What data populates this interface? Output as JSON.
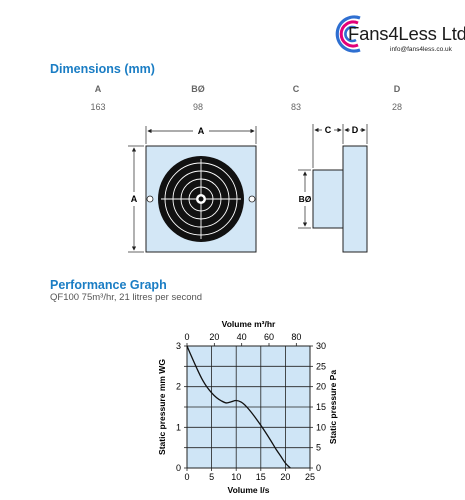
{
  "brand": {
    "name": "Fans4Less Ltd",
    "email": "info@fans4less.co.uk"
  },
  "dimensions": {
    "heading": "Dimensions (mm)",
    "columns": [
      {
        "label": "A",
        "value": "163"
      },
      {
        "label": "BØ",
        "value": "98"
      },
      {
        "label": "C",
        "value": "83"
      },
      {
        "label": "D",
        "value": "28"
      }
    ],
    "drawing_labels": {
      "front_width": "A",
      "front_height": "A",
      "side_c": "C",
      "side_d": "D",
      "side_diameter": "BØ"
    }
  },
  "performance": {
    "heading": "Performance Graph",
    "subtitle": "QF100 75m³/hr, 21 litres per second"
  },
  "colors": {
    "heading_blue": "#1a7dc4",
    "drawing_fill": "#d3e7f6",
    "chart_fill": "#cfe5f6",
    "logo_blue": "#2e6fd1",
    "logo_pink": "#e2007a"
  },
  "chart_data": {
    "type": "line",
    "title": "",
    "xlabel": "Volume l/s",
    "x2label": "Volume m³/hr",
    "ylabel": "Static pressure mm WG",
    "y2label": "Static pressure Pa",
    "xlim": [
      0,
      25
    ],
    "x2lim": [
      0,
      90
    ],
    "ylim": [
      0,
      3
    ],
    "y2lim": [
      0,
      30
    ],
    "xticks": [
      "0",
      "5",
      "10",
      "15",
      "20",
      "25"
    ],
    "x2ticks": [
      "0",
      "20",
      "40",
      "60",
      "80"
    ],
    "yticks": [
      "0",
      "0.5",
      "1",
      "1.5",
      "2",
      "2.5",
      "3"
    ],
    "y2ticks": [
      "0",
      "5",
      "10",
      "15",
      "20",
      "25",
      "30"
    ],
    "grid": true,
    "series": [
      {
        "x": [
          0,
          1,
          2,
          3,
          4,
          5,
          6,
          7,
          8,
          9,
          10,
          11,
          12,
          13,
          14,
          15,
          16,
          17,
          18,
          19,
          20,
          21
        ],
        "y": [
          3.0,
          2.72,
          2.45,
          2.2,
          2.0,
          1.85,
          1.73,
          1.65,
          1.6,
          1.63,
          1.66,
          1.62,
          1.52,
          1.38,
          1.22,
          1.05,
          0.87,
          0.68,
          0.48,
          0.3,
          0.12,
          0.0
        ]
      }
    ]
  }
}
